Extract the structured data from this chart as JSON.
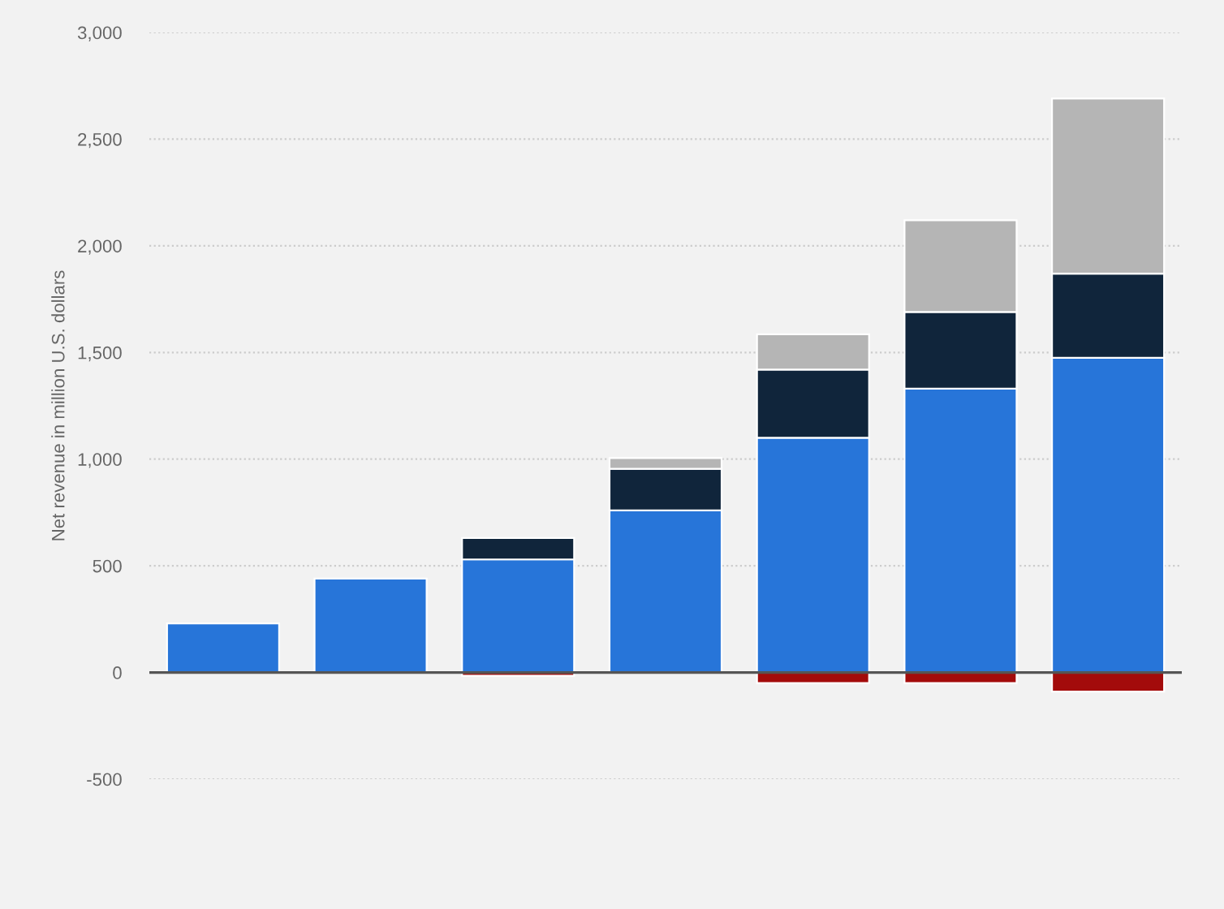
{
  "chart_data": {
    "type": "bar",
    "stacked": true,
    "ylabel": "Net revenue in million U.S. dollars",
    "categories": [
      null,
      null,
      null,
      null,
      null,
      null,
      null
    ],
    "series": [
      {
        "color": "#2775d9",
        "values": [
          230,
          440,
          530,
          760,
          1100,
          1330,
          1475
        ]
      },
      {
        "color": "#10253b",
        "values": [
          null,
          null,
          100,
          195,
          320,
          360,
          395
        ]
      },
      {
        "color": "#b5b5b5",
        "values": [
          null,
          null,
          null,
          50,
          165,
          430,
          820
        ]
      },
      {
        "color": "#a30b0b",
        "values": [
          null,
          null,
          -15,
          null,
          -50,
          -50,
          -90
        ]
      }
    ],
    "ylim": [
      -500,
      3000
    ],
    "yticks": [
      {
        "value": -500,
        "label": "-500"
      },
      0,
      {
        "value": 500,
        "label": "500"
      },
      {
        "value": 1000,
        "label": "1,000"
      },
      {
        "value": 1500,
        "label": "1,500"
      },
      {
        "value": 2000,
        "label": "2,000"
      },
      {
        "value": 2500,
        "label": "2,500"
      },
      {
        "value": 3000,
        "label": "3,000"
      }
    ],
    "grid": "y",
    "legend": false
  }
}
